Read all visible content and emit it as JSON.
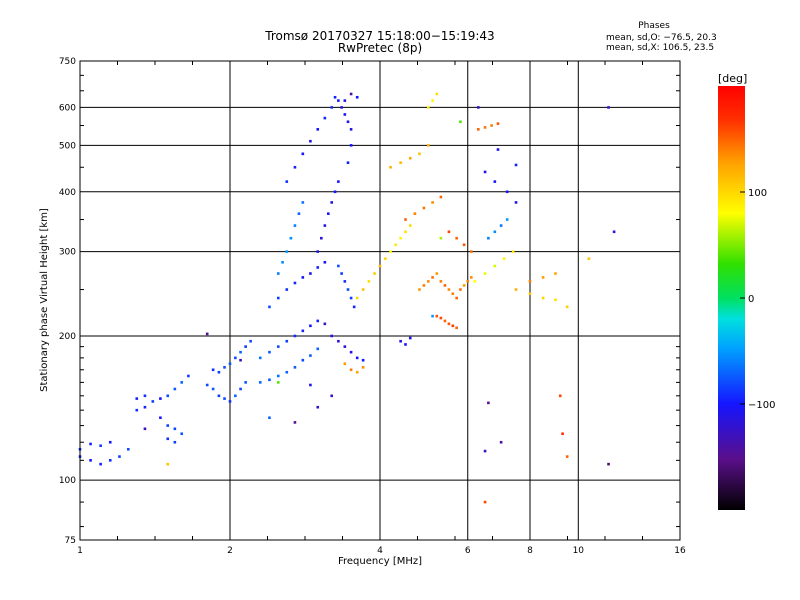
{
  "chart_data": {
    "type": "scatter",
    "title": "Tromsø 20170327 15:18:00−15:19:43",
    "subtitle": "RwPretec (8p)",
    "xlabel": "Frequency [MHz]",
    "ylabel": "Stationary phase Virtual Height [km]",
    "x_scale": "log",
    "y_scale": "log",
    "xlim": [
      1,
      16
    ],
    "ylim": [
      75,
      750
    ],
    "x_ticks": [
      1,
      2,
      4,
      6,
      8,
      10,
      16
    ],
    "y_ticks": [
      75,
      100,
      200,
      300,
      400,
      500,
      600,
      750
    ],
    "grid": true,
    "phases_header": "Phases",
    "phase_stats": [
      "mean, sd,O: −76.5, 20.3",
      "mean, sd,X: 106.5, 23.5"
    ],
    "colorbar": {
      "label": "[deg]",
      "range": [
        -200,
        200
      ],
      "ticks": [
        {
          "value": 100,
          "label": "100"
        },
        {
          "value": 0,
          "label": "0"
        },
        {
          "value": -100,
          "label": "−100"
        }
      ]
    },
    "series": [
      {
        "points": [
          [
            1.0,
            112,
            -95
          ],
          [
            1.05,
            110,
            -100
          ],
          [
            1.1,
            108,
            -95
          ],
          [
            1.15,
            110,
            -90
          ],
          [
            1.2,
            112,
            -85
          ],
          [
            1.25,
            116,
            -80
          ],
          [
            1.1,
            118,
            -85
          ],
          [
            1.0,
            116,
            -90
          ],
          [
            1.05,
            119,
            -95
          ],
          [
            1.15,
            120,
            -100
          ],
          [
            1.3,
            148,
            -95
          ],
          [
            1.35,
            150,
            -90
          ],
          [
            1.4,
            146,
            -85
          ],
          [
            1.45,
            148,
            -100
          ],
          [
            1.5,
            150,
            -80
          ],
          [
            1.55,
            155,
            -75
          ],
          [
            1.6,
            160,
            -70
          ],
          [
            1.65,
            165,
            -85
          ],
          [
            1.3,
            140,
            -90
          ],
          [
            1.35,
            142,
            -95
          ],
          [
            1.45,
            135,
            -100
          ],
          [
            1.5,
            130,
            -85
          ],
          [
            1.55,
            128,
            -80
          ],
          [
            1.6,
            125,
            -75
          ],
          [
            1.5,
            122,
            -90
          ],
          [
            1.55,
            120,
            -85
          ],
          [
            1.8,
            158,
            -80
          ],
          [
            1.85,
            155,
            -75
          ],
          [
            1.9,
            150,
            -85
          ],
          [
            1.95,
            148,
            -80
          ],
          [
            2.0,
            146,
            -90
          ],
          [
            2.05,
            150,
            -70
          ],
          [
            2.1,
            155,
            -80
          ],
          [
            2.15,
            160,
            -75
          ],
          [
            1.85,
            170,
            -90
          ],
          [
            1.9,
            168,
            -85
          ],
          [
            1.95,
            172,
            -80
          ],
          [
            2.0,
            175,
            -75
          ],
          [
            2.05,
            180,
            -80
          ],
          [
            2.1,
            185,
            -70
          ],
          [
            2.15,
            190,
            -85
          ],
          [
            2.2,
            195,
            -80
          ],
          [
            2.3,
            160,
            -70
          ],
          [
            2.4,
            162,
            -75
          ],
          [
            2.5,
            165,
            -65
          ],
          [
            2.6,
            168,
            -70
          ],
          [
            2.7,
            172,
            -75
          ],
          [
            2.8,
            178,
            -80
          ],
          [
            2.9,
            182,
            -75
          ],
          [
            3.0,
            188,
            -70
          ],
          [
            2.3,
            180,
            -65
          ],
          [
            2.4,
            185,
            -75
          ],
          [
            2.5,
            190,
            -80
          ],
          [
            2.6,
            195,
            -85
          ],
          [
            2.7,
            200,
            -90
          ],
          [
            2.8,
            205,
            -95
          ],
          [
            2.9,
            210,
            -100
          ],
          [
            3.0,
            215,
            -95
          ],
          [
            2.4,
            230,
            -80
          ],
          [
            2.5,
            240,
            -85
          ],
          [
            2.6,
            250,
            -90
          ],
          [
            2.7,
            258,
            -95
          ],
          [
            2.8,
            265,
            -100
          ],
          [
            2.9,
            270,
            -105
          ],
          [
            3.0,
            278,
            -95
          ],
          [
            3.1,
            285,
            -100
          ],
          [
            2.5,
            270,
            -60
          ],
          [
            2.55,
            285,
            -55
          ],
          [
            2.6,
            300,
            -50
          ],
          [
            2.65,
            320,
            -55
          ],
          [
            2.7,
            340,
            -60
          ],
          [
            2.75,
            360,
            -70
          ],
          [
            2.8,
            380,
            -65
          ],
          [
            3.0,
            300,
            -110
          ],
          [
            3.05,
            320,
            -115
          ],
          [
            3.1,
            340,
            -110
          ],
          [
            3.15,
            360,
            -105
          ],
          [
            3.2,
            380,
            -110
          ],
          [
            3.25,
            400,
            -100
          ],
          [
            3.3,
            420,
            -105
          ],
          [
            2.6,
            420,
            -90
          ],
          [
            2.7,
            450,
            -95
          ],
          [
            2.8,
            480,
            -100
          ],
          [
            2.9,
            510,
            -105
          ],
          [
            3.0,
            540,
            -100
          ],
          [
            3.1,
            570,
            -95
          ],
          [
            3.2,
            600,
            -90
          ],
          [
            3.25,
            630,
            -95
          ],
          [
            3.3,
            620,
            -105
          ],
          [
            3.35,
            600,
            -110
          ],
          [
            3.4,
            580,
            -100
          ],
          [
            3.45,
            560,
            -105
          ],
          [
            3.5,
            540,
            -110
          ],
          [
            3.5,
            500,
            -100
          ],
          [
            3.45,
            460,
            -95
          ],
          [
            3.3,
            280,
            -80
          ],
          [
            3.35,
            270,
            -85
          ],
          [
            3.4,
            260,
            -90
          ],
          [
            3.45,
            250,
            -80
          ],
          [
            3.5,
            240,
            -85
          ],
          [
            3.55,
            230,
            -95
          ],
          [
            3.2,
            200,
            -110
          ],
          [
            3.3,
            195,
            -115
          ],
          [
            3.4,
            190,
            -120
          ],
          [
            3.5,
            185,
            -110
          ],
          [
            3.6,
            180,
            -105
          ],
          [
            3.7,
            178,
            -100
          ],
          [
            3.4,
            175,
            130
          ],
          [
            3.5,
            170,
            140
          ],
          [
            3.6,
            168,
            125
          ],
          [
            3.7,
            172,
            135
          ],
          [
            3.6,
            240,
            100
          ],
          [
            3.7,
            250,
            110
          ],
          [
            3.8,
            260,
            95
          ],
          [
            3.9,
            270,
            105
          ],
          [
            4.0,
            280,
            115
          ],
          [
            4.1,
            290,
            100
          ],
          [
            4.2,
            300,
            80
          ],
          [
            4.3,
            310,
            90
          ],
          [
            4.4,
            320,
            85
          ],
          [
            4.5,
            330,
            95
          ],
          [
            4.6,
            340,
            100
          ],
          [
            4.8,
            250,
            130
          ],
          [
            4.9,
            255,
            140
          ],
          [
            5.0,
            260,
            135
          ],
          [
            5.1,
            265,
            145
          ],
          [
            5.2,
            270,
            130
          ],
          [
            5.3,
            260,
            140
          ],
          [
            5.4,
            255,
            150
          ],
          [
            5.5,
            250,
            135
          ],
          [
            5.6,
            245,
            140
          ],
          [
            5.7,
            240,
            150
          ],
          [
            5.8,
            250,
            145
          ],
          [
            5.9,
            255,
            130
          ],
          [
            6.0,
            260,
            140
          ],
          [
            6.1,
            265,
            135
          ],
          [
            5.2,
            220,
            155
          ],
          [
            5.3,
            218,
            160
          ],
          [
            5.4,
            215,
            150
          ],
          [
            5.5,
            212,
            155
          ],
          [
            5.6,
            210,
            165
          ],
          [
            5.7,
            208,
            150
          ],
          [
            4.5,
            350,
            150
          ],
          [
            4.7,
            360,
            140
          ],
          [
            4.9,
            370,
            145
          ],
          [
            5.1,
            380,
            135
          ],
          [
            5.3,
            390,
            150
          ],
          [
            5.5,
            330,
            160
          ],
          [
            5.7,
            320,
            150
          ],
          [
            5.9,
            310,
            155
          ],
          [
            6.1,
            300,
            145
          ],
          [
            4.2,
            450,
            120
          ],
          [
            4.4,
            460,
            115
          ],
          [
            4.6,
            470,
            125
          ],
          [
            4.8,
            480,
            110
          ],
          [
            5.0,
            500,
            120
          ],
          [
            5.0,
            600,
            90
          ],
          [
            5.1,
            620,
            85
          ],
          [
            5.2,
            640,
            95
          ],
          [
            6.3,
            540,
            150
          ],
          [
            6.5,
            545,
            145
          ],
          [
            6.7,
            550,
            140
          ],
          [
            6.9,
            555,
            155
          ],
          [
            6.2,
            260,
            80
          ],
          [
            6.5,
            270,
            75
          ],
          [
            6.8,
            280,
            70
          ],
          [
            7.1,
            290,
            85
          ],
          [
            7.4,
            300,
            90
          ],
          [
            6.6,
            320,
            -60
          ],
          [
            6.8,
            330,
            -55
          ],
          [
            7.0,
            340,
            -65
          ],
          [
            7.2,
            350,
            -50
          ],
          [
            7.5,
            250,
            120
          ],
          [
            8.0,
            245,
            110
          ],
          [
            8.5,
            240,
            100
          ],
          [
            9.0,
            238,
            95
          ],
          [
            9.5,
            230,
            105
          ],
          [
            8.0,
            260,
            140
          ],
          [
            8.5,
            265,
            130
          ],
          [
            9.0,
            270,
            125
          ],
          [
            10.5,
            290,
            110
          ],
          [
            6.5,
            440,
            -110
          ],
          [
            6.8,
            420,
            -100
          ],
          [
            7.2,
            400,
            -105
          ],
          [
            7.5,
            380,
            -110
          ],
          [
            4.4,
            195,
            -110
          ],
          [
            4.5,
            192,
            -100
          ],
          [
            4.6,
            198,
            -105
          ],
          [
            6.5,
            90,
            160
          ],
          [
            6.5,
            115,
            -130
          ],
          [
            6.6,
            145,
            -150
          ],
          [
            7.0,
            120,
            -140
          ],
          [
            9.2,
            150,
            160
          ],
          [
            9.3,
            125,
            170
          ],
          [
            9.5,
            112,
            150
          ],
          [
            11.5,
            108,
            -160
          ],
          [
            11.5,
            600,
            -120
          ],
          [
            11.8,
            330,
            -115
          ],
          [
            1.5,
            108,
            110
          ],
          [
            1.35,
            128,
            -130
          ],
          [
            1.8,
            202,
            -150
          ],
          [
            2.1,
            178,
            -130
          ],
          [
            2.4,
            135,
            -70
          ],
          [
            2.5,
            160,
            40
          ],
          [
            2.7,
            132,
            -150
          ],
          [
            3.5,
            640,
            -140
          ],
          [
            3.0,
            142,
            -120
          ],
          [
            3.2,
            150,
            -115
          ],
          [
            2.9,
            158,
            -105
          ],
          [
            3.4,
            620,
            -110
          ],
          [
            3.6,
            630,
            -100
          ],
          [
            3.1,
            212,
            -130
          ],
          [
            5.1,
            220,
            -50
          ],
          [
            5.3,
            320,
            60
          ],
          [
            5.8,
            560,
            40
          ],
          [
            6.3,
            600,
            -120
          ],
          [
            6.9,
            490,
            -105
          ],
          [
            7.5,
            455,
            -95
          ]
        ]
      }
    ]
  }
}
